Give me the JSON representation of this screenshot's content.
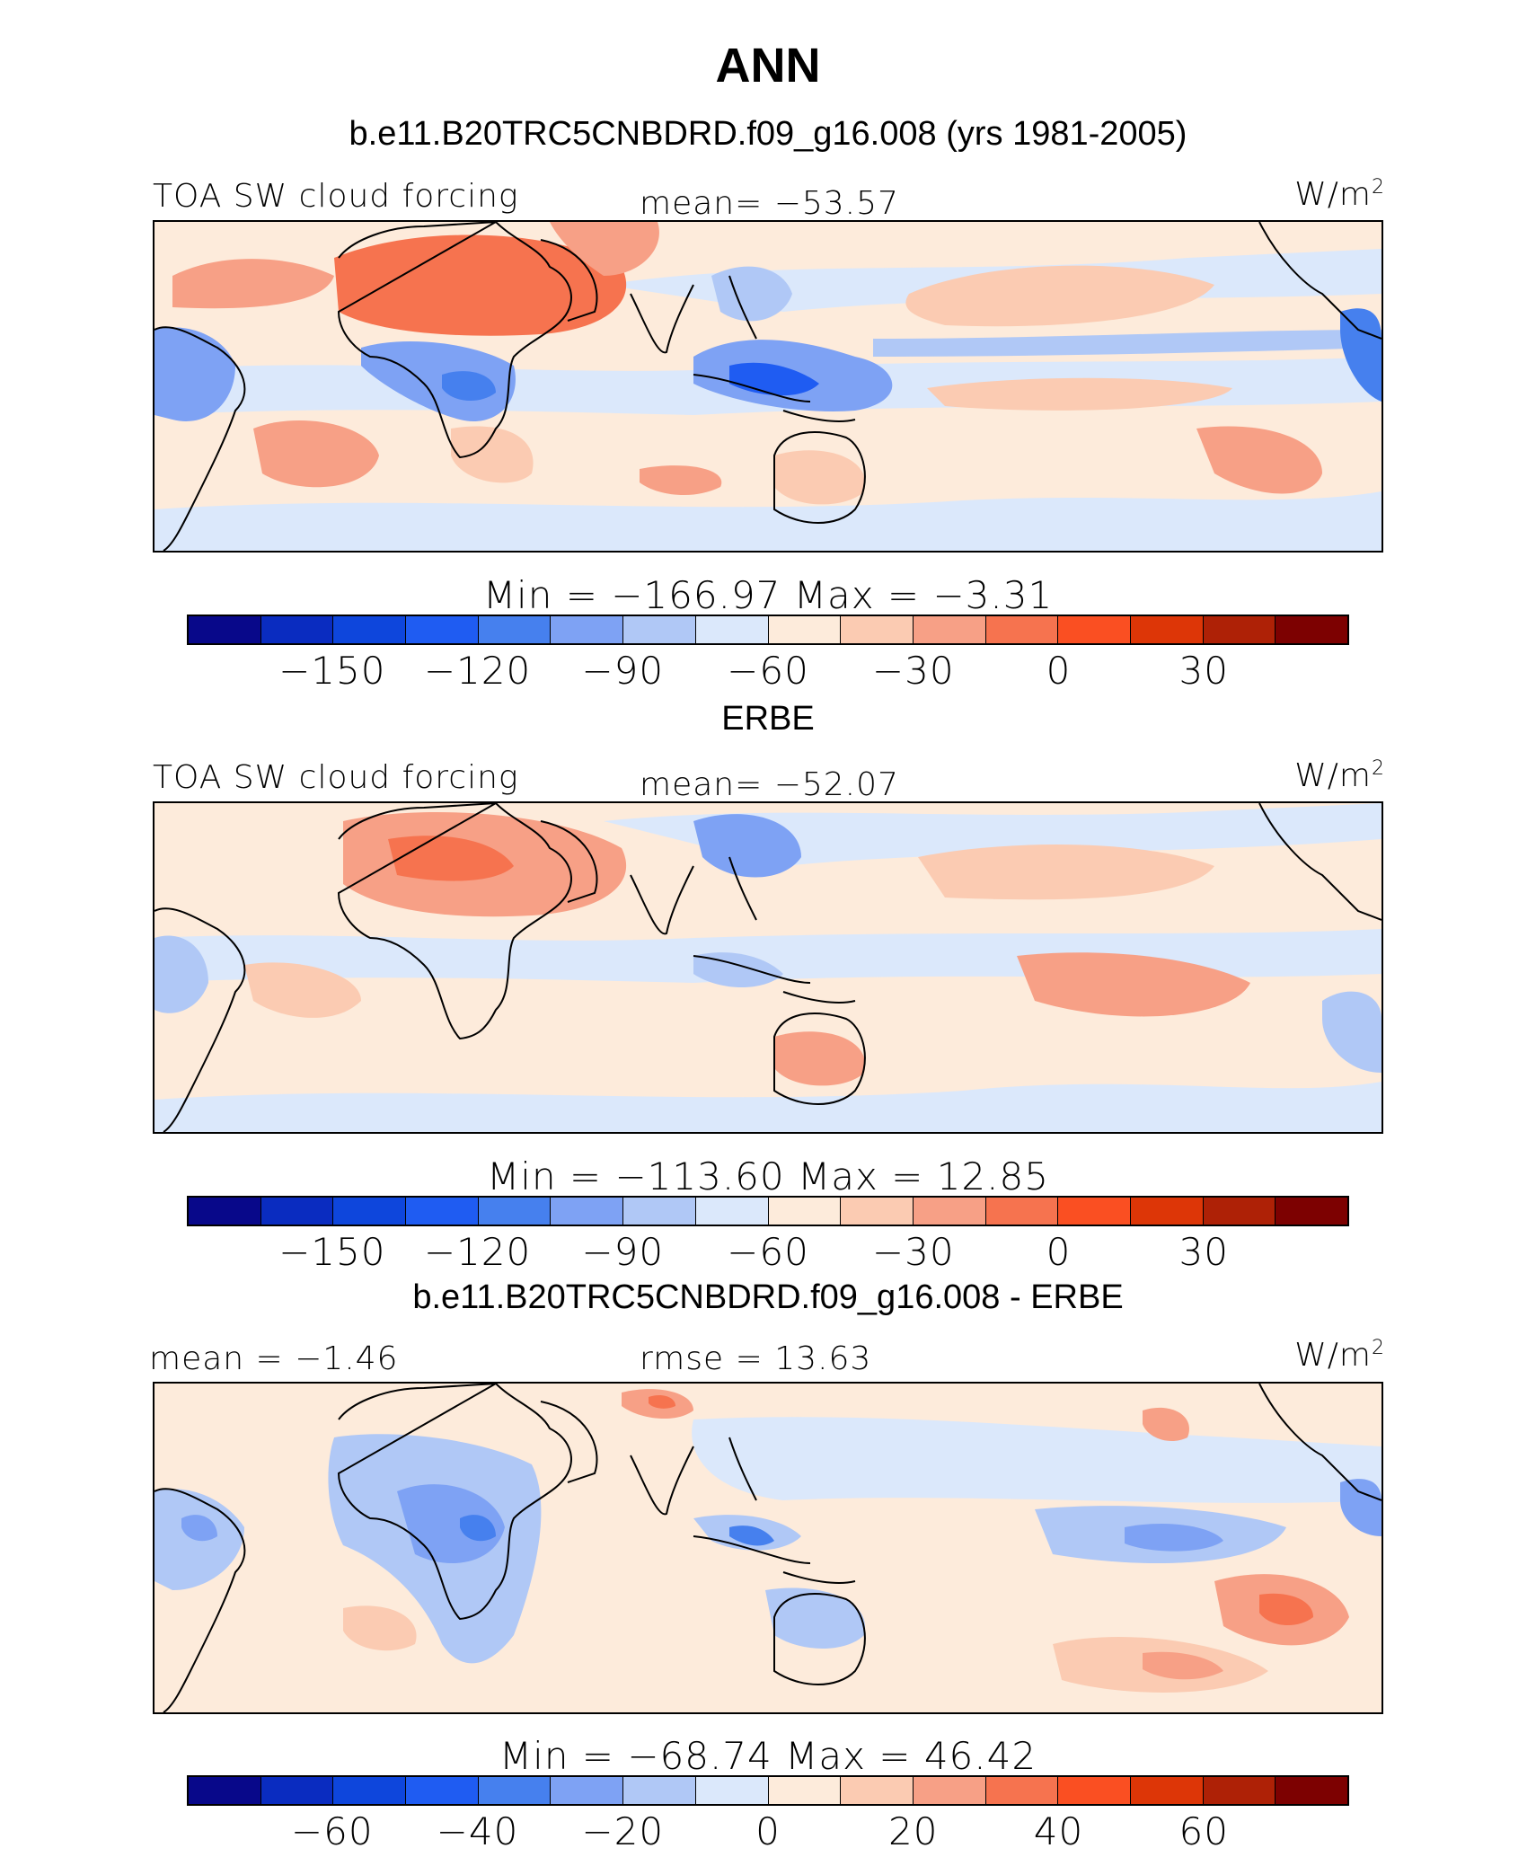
{
  "title": "ANN",
  "palette": [
    "#08088a",
    "#0a2cc0",
    "#0e46dc",
    "#1f5cf2",
    "#4680ee",
    "#7ea2f4",
    "#b0c8f6",
    "#dbe8fb",
    "#fdebdb",
    "#fbcbb2",
    "#f7a086",
    "#f6734f",
    "#fa4f22",
    "#dd3607",
    "#ae2106",
    "#7d0101"
  ],
  "panels": [
    {
      "subtitle": "b.e11.B20TRC5CNBDRD.f09_g16.008 (yrs 1981-2005)",
      "left_label": "TOA SW cloud forcing",
      "center_label": "mean= −53.57",
      "units": "W/m",
      "units_sup": "2",
      "minmax": "Min  =  −166.97  Max  =   −3.31",
      "ticks": [
        "−150",
        "−120",
        "−90",
        "−60",
        "−30",
        "0",
        "30"
      ]
    },
    {
      "subtitle": "ERBE",
      "left_label": "TOA SW cloud forcing",
      "center_label": "mean= −52.07",
      "units": "W/m",
      "units_sup": "2",
      "minmax": "Min  =  −113.60  Max  =   12.85",
      "ticks": [
        "−150",
        "−120",
        "−90",
        "−60",
        "−30",
        "0",
        "30"
      ]
    },
    {
      "subtitle": "b.e11.B20TRC5CNBDRD.f09_g16.008 - ERBE",
      "left_label": "mean  =   −1.46",
      "center_label": "rmse  =   13.63",
      "units": "W/m",
      "units_sup": "2",
      "minmax": "Min  =  −68.74  Max  =   46.42",
      "ticks": [
        "−60",
        "−40",
        "−20",
        "0",
        "20",
        "40",
        "60"
      ]
    }
  ]
}
